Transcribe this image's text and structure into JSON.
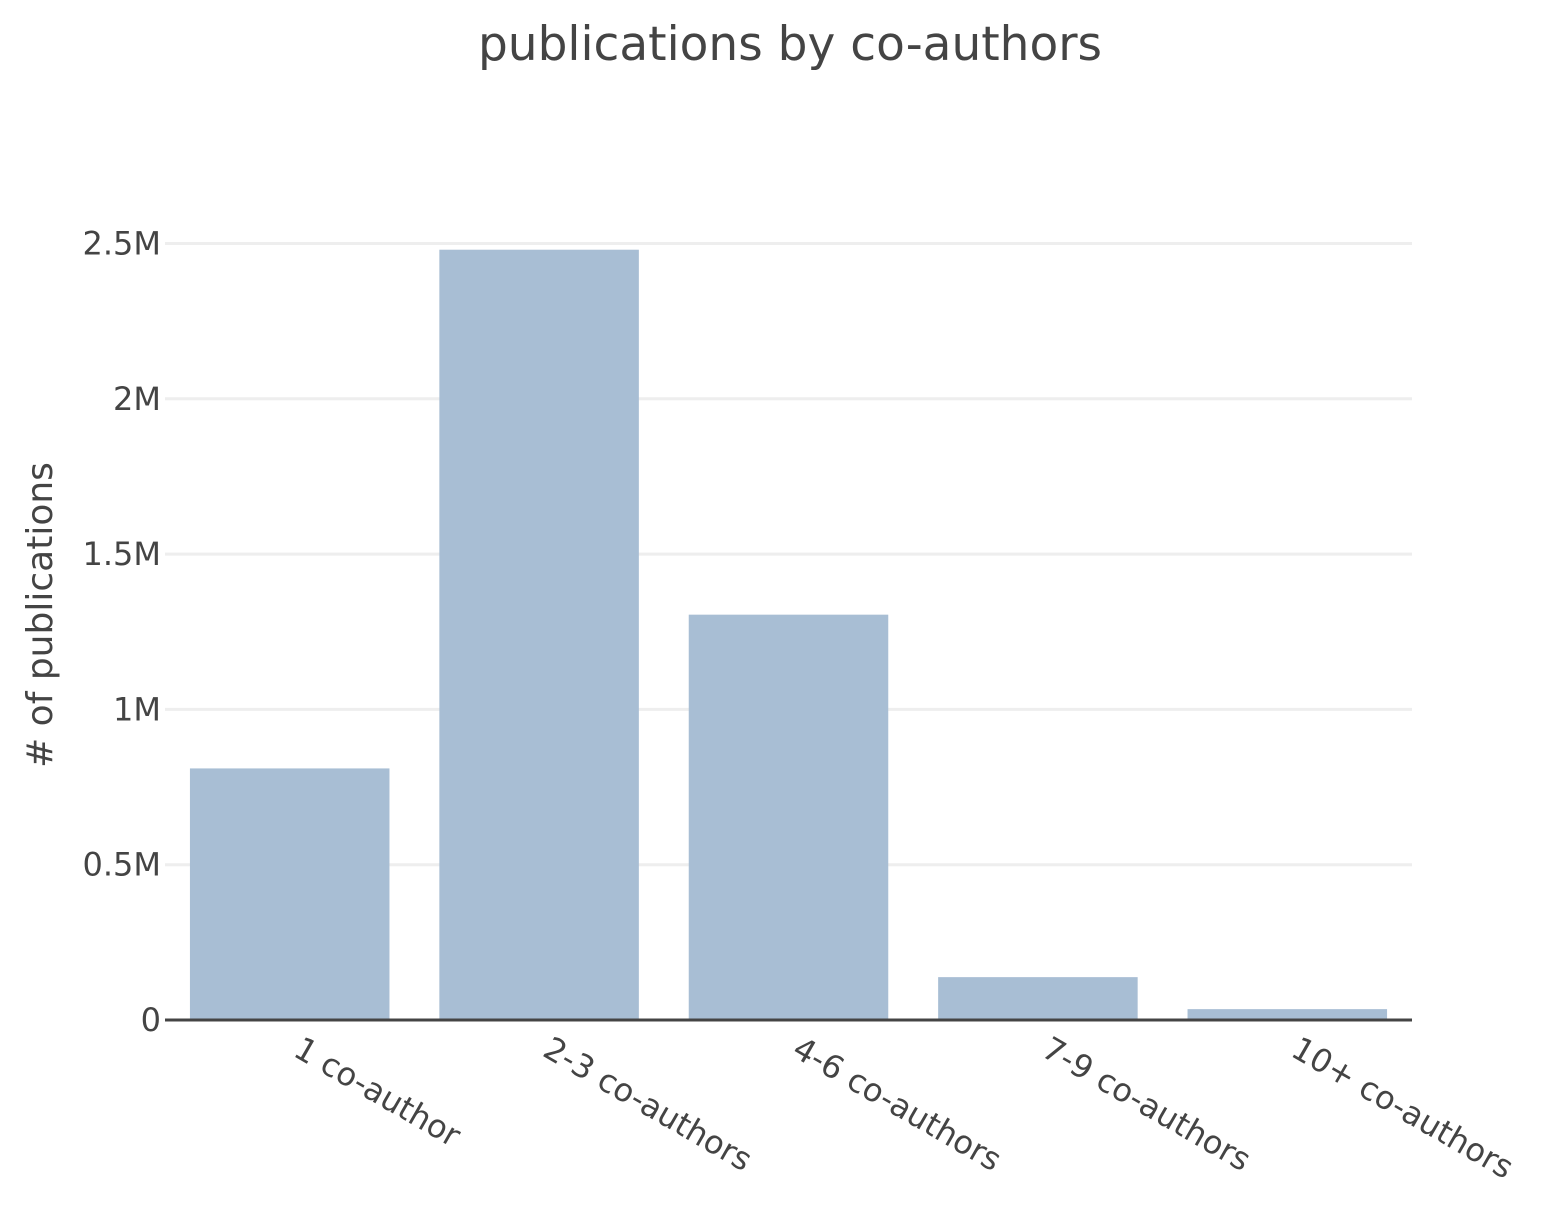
{
  "chart_data": {
    "type": "bar",
    "title": "publications by co-authors",
    "xlabel": "",
    "ylabel": "# of publications",
    "categories": [
      "1 co-author",
      "2-3 co-authors",
      "4-6 co-authors",
      "7-9 co-authors",
      "10+ co-authors"
    ],
    "values": [
      810000,
      2480000,
      1305000,
      138000,
      35000
    ],
    "ylim": [
      0,
      2500000
    ],
    "yticks": [
      0,
      500000,
      1000000,
      1500000,
      2000000,
      2500000
    ],
    "ytick_labels": [
      "0",
      "0.5M",
      "1M",
      "1.5M",
      "2M",
      "2.5M"
    ],
    "grid": true,
    "bar_color": "#a8bed4",
    "text_color": "#444444"
  }
}
